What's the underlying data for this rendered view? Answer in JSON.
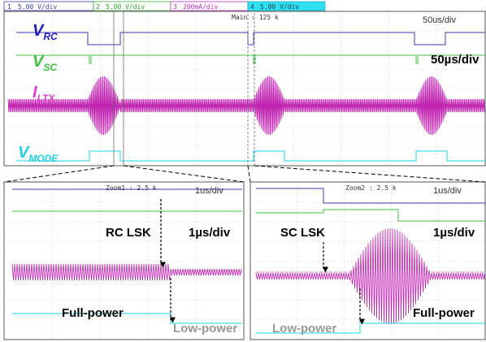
{
  "header": {
    "channels": [
      {
        "num": "1",
        "label": "5.00 V/div"
      },
      {
        "num": "2",
        "label": "5.00 V/div"
      },
      {
        "num": "3",
        "label": "200mA/div"
      },
      {
        "num": "4",
        "label": "5.00 V/div"
      }
    ]
  },
  "main": {
    "timebase_label": "Main : 125 k",
    "scope_scale": "50us/div",
    "scale": "50µs/div",
    "signals": [
      {
        "main": "V",
        "sub": "RC"
      },
      {
        "main": "V",
        "sub": "SC"
      },
      {
        "main": "I",
        "sub": "LTX"
      },
      {
        "main": "V",
        "sub": "MODE"
      }
    ]
  },
  "zoom1": {
    "timebase_label": "Zoom1 : 2.5 k",
    "scope_scale": "1us/div",
    "event": "RC LSK",
    "scale": "1µs/div",
    "before": "Full-power",
    "after": "Low-power"
  },
  "zoom2": {
    "timebase_label": "Zoom2 : 2.5 k",
    "scope_scale": "1us/div",
    "event": "SC LSK",
    "scale": "1µs/div",
    "before": "Low-power",
    "after": "Full-power"
  }
}
